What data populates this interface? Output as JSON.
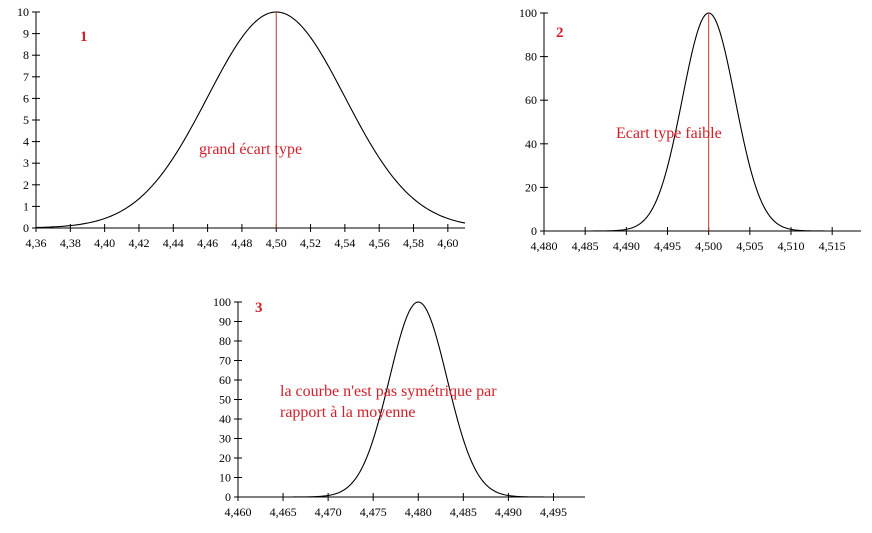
{
  "chart_data": [
    {
      "type": "line",
      "number_label": "1",
      "annotation": [
        "grand écart type"
      ],
      "x_ticks": [
        4.36,
        4.38,
        4.4,
        4.42,
        4.44,
        4.46,
        4.48,
        4.5,
        4.52,
        4.54,
        4.56,
        4.58,
        4.6
      ],
      "x_tick_labels": [
        "4,36",
        "4,38",
        "4,40",
        "4,42",
        "4,44",
        "4,46",
        "4,48",
        "4,50",
        "4,52",
        "4,54",
        "4,56",
        "4,58",
        "4,60"
      ],
      "y_ticks": [
        0,
        1,
        2,
        3,
        4,
        5,
        6,
        7,
        8,
        9,
        10
      ],
      "y_tick_labels": [
        "0",
        "1",
        "2",
        "3",
        "4",
        "5",
        "6",
        "7",
        "8",
        "9",
        "10"
      ],
      "xlim": [
        4.36,
        4.61
      ],
      "ylim": [
        0,
        10
      ],
      "curve": {
        "mean": 4.5,
        "sd": 0.04,
        "peak": 10,
        "x_range": [
          4.36,
          4.61
        ]
      },
      "mean_line_x": 4.5,
      "color": "#000000",
      "accent": "#d0202a"
    },
    {
      "type": "line",
      "number_label": "2",
      "annotation": [
        "Ecart type faible"
      ],
      "x_ticks": [
        4.48,
        4.485,
        4.49,
        4.495,
        4.5,
        4.505,
        4.51,
        4.515
      ],
      "x_tick_labels": [
        "4,480",
        "4,485",
        "4,490",
        "4,495",
        "4,500",
        "4,505",
        "4,510",
        "4,515"
      ],
      "y_ticks": [
        0,
        20,
        40,
        60,
        80,
        100
      ],
      "y_tick_labels": [
        "0",
        "20",
        "40",
        "60",
        "80",
        "100"
      ],
      "xlim": [
        4.48,
        4.5185
      ],
      "ylim": [
        0,
        100
      ],
      "curve": {
        "mean": 4.5,
        "sd": 0.0032,
        "peak": 100,
        "x_range": [
          4.485,
          4.515
        ]
      },
      "mean_line_x": 4.5,
      "color": "#000000",
      "accent": "#d0202a"
    },
    {
      "type": "line",
      "number_label": "3",
      "annotation": [
        "la courbe n'est pas symétrique par",
        "rapport à la moyenne"
      ],
      "x_ticks": [
        4.46,
        4.465,
        4.47,
        4.475,
        4.48,
        4.485,
        4.49,
        4.495
      ],
      "x_tick_labels": [
        "4,460",
        "4,465",
        "4,470",
        "4,475",
        "4,480",
        "4,485",
        "4,490",
        "4,495"
      ],
      "y_ticks": [
        0,
        10,
        20,
        30,
        40,
        50,
        60,
        70,
        80,
        90,
        100
      ],
      "y_tick_labels": [
        "0",
        "10",
        "20",
        "30",
        "40",
        "50",
        "60",
        "70",
        "80",
        "90",
        "100"
      ],
      "xlim": [
        4.46,
        4.4985
      ],
      "ylim": [
        0,
        100
      ],
      "curve": {
        "mean": 4.48,
        "sd": 0.0032,
        "peak": 100,
        "x_range": [
          4.465,
          4.495
        ]
      },
      "mean_line_x": null,
      "color": "#000000",
      "accent": "#d0202a"
    }
  ]
}
